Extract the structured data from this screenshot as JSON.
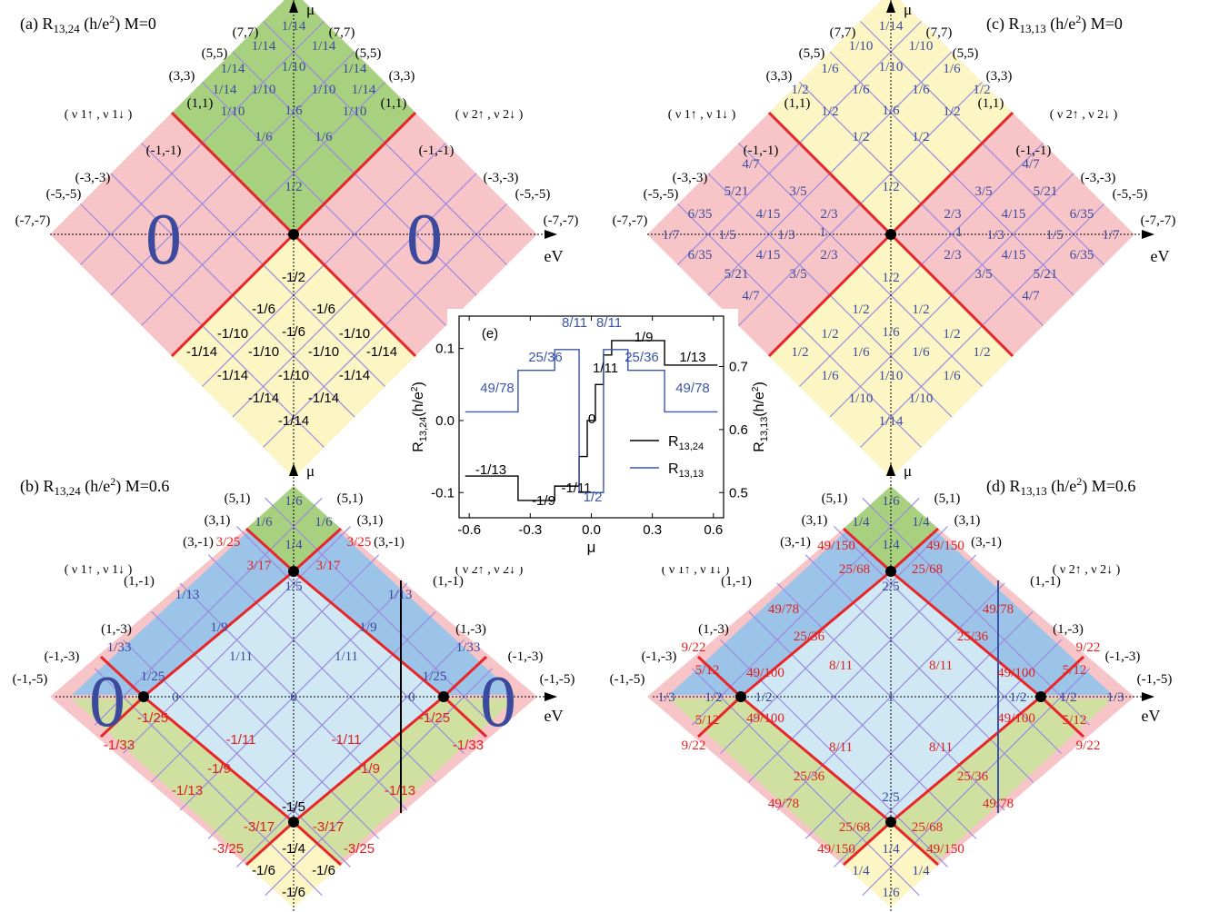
{
  "colors": {
    "pink": "#f7c4c8",
    "green": "#a7d07f",
    "yellow": "#fbf6c4",
    "yellowgreen": "#cfe0a0",
    "blue": "#9cc4e8",
    "lightblue": "#cfe8f3",
    "grid": "#9b8ae0",
    "phase_boundary": "#e8262a",
    "blue_text": "#3b4a9c",
    "red_text": "#e02020",
    "trace_black": "#000000",
    "trace_blue": "#3b55a8"
  },
  "panels": {
    "a": {
      "title": "(a) R",
      "title_sub": "13,24",
      "title_unit": " (h/e",
      "title_sup": "2",
      "title_tail": ")    M=0",
      "axis_mu": "μ",
      "axis_ev": "eV",
      "fill_left": "(ν",
      "fill_right": "(ν",
      "left_pair_label": "( ν 1↑ , ν 1↓ )",
      "right_pair_label": "( ν 2↑ , ν 2↓ )",
      "left_labels": [
        "(1,1)",
        "(3,3)",
        "(5,5)",
        "(7,7)",
        "(-1,-1)",
        "(-3,-3)",
        "(-5,-5)",
        "(-7,-7)"
      ],
      "right_labels": [
        "(1,1)",
        "(3,3)",
        "(5,5)",
        "(7,7)",
        "(-1,-1)",
        "(-3,-3)",
        "(-5,-5)",
        "(-7,-7)"
      ],
      "big_zero_left": "0",
      "big_zero_right": "0",
      "top_values": [
        "1/14",
        "1/14",
        "1/14",
        "1/14",
        "1/10",
        "1/14",
        "1/14",
        "1/10",
        "1/10",
        "1/14",
        "1/10",
        "1/6",
        "1/10",
        "1/6",
        "1/6",
        "1/2"
      ],
      "bottom_values": [
        "-1/2",
        "-1/6",
        "-1/6",
        "-1/10",
        "-1/6",
        "-1/10",
        "-1/14",
        "-1/10",
        "-1/10",
        "-1/14",
        "-1/14",
        "-1/10",
        "-1/14",
        "-1/14",
        "-1/14",
        "-1/14"
      ]
    },
    "b": {
      "title": "(b) R",
      "title_sub": "13,24",
      "title_unit": " (h/e",
      "title_sup": "2",
      "title_tail": ")    M=0.6",
      "axis_mu": "μ",
      "axis_ev": "eV",
      "left_pair_label": "( ν 1↑ , ν 1↓ )",
      "right_pair_label": "( ν 2↑ , ν 2↓ )",
      "left_labels": [
        "(5,1)",
        "(3,1)",
        "(3,-1)",
        "(1,-1)",
        "(1,-3)",
        "(-1,-3)",
        "(-1,-5)"
      ],
      "right_labels": [
        "(5,1)",
        "(3,1)",
        "(3,-1)",
        "(1,-1)",
        "(1,-3)",
        "(-1,-3)",
        "(-1,-5)"
      ],
      "big_zero_left": "0",
      "big_zero_right": "0",
      "cells": {
        "top_cap": [
          "1/6",
          "1/6",
          "1/6",
          "1/4"
        ],
        "top_red": [
          "3/25",
          "3/25",
          "3/17",
          "3/17"
        ],
        "top_blue": [
          "1/5",
          "1/13",
          "1/13",
          "1/9",
          "1/9",
          "1/11",
          "1/11",
          "1/33",
          "1/33",
          "1/25",
          "1/25"
        ],
        "center": [
          "0",
          "0",
          "0"
        ],
        "bottom_red": [
          "-1/25",
          "-1/25",
          "-1/33",
          "-1/33",
          "-1/11",
          "-1/11",
          "-1/9",
          "-1/9",
          "-1/13",
          "-1/13",
          "-1/5",
          "-3/17",
          "-3/17",
          "-3/25",
          "-3/25",
          "-1/4",
          "-1/6",
          "-1/6",
          "-1/6"
        ]
      }
    },
    "c": {
      "title": "(c) R",
      "title_sub": "13,13",
      "title_unit": " (h/e",
      "title_sup": "2",
      "title_tail": ")    M=0",
      "axis_mu": "μ",
      "axis_ev": "eV",
      "left_pair_label": "( ν 1↑ , ν 1↓ )",
      "right_pair_label": "( ν 2↑ , ν 2↓ )",
      "left_labels": [
        "(1,1)",
        "(3,3)",
        "(5,5)",
        "(7,7)",
        "(-1,-1)",
        "(-3,-3)",
        "(-5,-5)",
        "(-7,-7)"
      ],
      "right_labels": [
        "(1,1)",
        "(3,3)",
        "(5,5)",
        "(7,7)",
        "(-1,-1)",
        "(-3,-3)",
        "(-5,-5)",
        "(-7,-7)"
      ],
      "top_values": [
        "1/14",
        "1/10",
        "1/10",
        "1/6",
        "1/10",
        "1/6",
        "1/2",
        "1/6",
        "1/6",
        "1/2",
        "1/2",
        "1/6",
        "1/2",
        "1/2",
        "1/2",
        "1/2"
      ],
      "side_values": [
        "4/7",
        "5/21",
        "3/5",
        "6/35",
        "4/15",
        "2/3",
        "1/7",
        "1/5",
        "1/3",
        "1",
        "6/35",
        "4/15",
        "2/3",
        "5/21",
        "3/5",
        "4/7"
      ]
    },
    "d": {
      "title": "(d) R",
      "title_sub": "13,13",
      "title_unit": " (h/e",
      "title_sup": "2",
      "title_tail": ")    M=0.6",
      "axis_mu": "μ",
      "axis_ev": "eV",
      "left_pair_label": "( ν 1↑ , ν 1↓ )",
      "right_pair_label": "( ν 2↑ , ν 2↓ )",
      "left_labels": [
        "(5,1)",
        "(3,1)",
        "(3,-1)",
        "(1,-1)",
        "(1,-3)",
        "(-1,-3)",
        "(-1,-5)"
      ],
      "right_labels": [
        "(5,1)",
        "(3,1)",
        "(3,-1)",
        "(1,-1)",
        "(1,-3)",
        "(-1,-3)",
        "(-1,-5)"
      ],
      "cells": {
        "top_cap": [
          "1/6",
          "1/4",
          "1/4",
          "1/4"
        ],
        "top_red": [
          "49/150",
          "49/150",
          "25/68",
          "25/68",
          "2/5",
          "49/78",
          "49/78",
          "25/36",
          "25/36",
          "8/11",
          "8/11",
          "9/22",
          "9/22",
          "5/12",
          "5/12",
          "49/100",
          "49/100"
        ],
        "center": [
          "1/3",
          "1/2",
          "1/2",
          "1",
          "1/2",
          "1/2",
          "1/3"
        ]
      }
    }
  },
  "chart_data": {
    "type": "line",
    "panel_label": "(e)",
    "xlabel": "μ",
    "ylabel_left": "R",
    "ylabel_left_sub": "13,24",
    "ylabel_left_unit": "(h/e",
    "ylabel_left_sup": "2",
    "ylabel_right": "R",
    "ylabel_right_sub": "13,13",
    "ylabel_right_unit": "(h/e",
    "ylabel_right_sup": "2",
    "xlim": [
      -0.65,
      0.65
    ],
    "ylim_left": [
      -0.135,
      0.145
    ],
    "ylim_right": [
      0.46,
      0.78
    ],
    "x_ticks": [
      "-0.6",
      "-0.3",
      "0.0",
      "0.3",
      "0.6"
    ],
    "y_ticks_left": [
      "-0.1",
      "0.0",
      "0.1"
    ],
    "y_ticks_right": [
      "0.5",
      "0.6",
      "0.7"
    ],
    "legend": [
      "R",
      "R"
    ],
    "legend_subs": [
      "13,24",
      "13,13"
    ],
    "series": [
      {
        "name": "R13,24",
        "axis": "left",
        "x": [
          -0.62,
          -0.36,
          -0.36,
          -0.18,
          -0.18,
          -0.1,
          -0.1,
          -0.06,
          -0.06,
          -0.02,
          -0.02,
          0.02,
          0.02,
          0.06,
          0.06,
          0.1,
          0.1,
          0.18,
          0.18,
          0.36,
          0.36,
          0.62
        ],
        "y": [
          -0.077,
          -0.077,
          -0.111,
          -0.111,
          -0.091,
          -0.091,
          -0.091,
          -0.091,
          -0.05,
          -0.05,
          0.0,
          0.0,
          0.05,
          0.05,
          0.091,
          0.091,
          0.111,
          0.111,
          0.111,
          0.111,
          0.077,
          0.077
        ]
      },
      {
        "name": "R13,13",
        "axis": "right",
        "x": [
          -0.62,
          -0.36,
          -0.36,
          -0.18,
          -0.18,
          -0.1,
          -0.1,
          -0.06,
          -0.06,
          0.06,
          0.06,
          0.1,
          0.1,
          0.18,
          0.18,
          0.36,
          0.36,
          0.62
        ],
        "y": [
          0.628,
          0.628,
          0.694,
          0.694,
          0.727,
          0.727,
          0.727,
          0.727,
          0.5,
          0.5,
          0.727,
          0.727,
          0.727,
          0.727,
          0.694,
          0.694,
          0.628,
          0.628
        ]
      }
    ],
    "annotations": [
      "49/78",
      "25/36",
      "8/11",
      "8/11",
      "25/36",
      "49/78",
      "1/9",
      "1/13",
      "1/11",
      "0",
      "-1/13",
      "-1/9",
      "-1/11",
      "1/2"
    ]
  }
}
